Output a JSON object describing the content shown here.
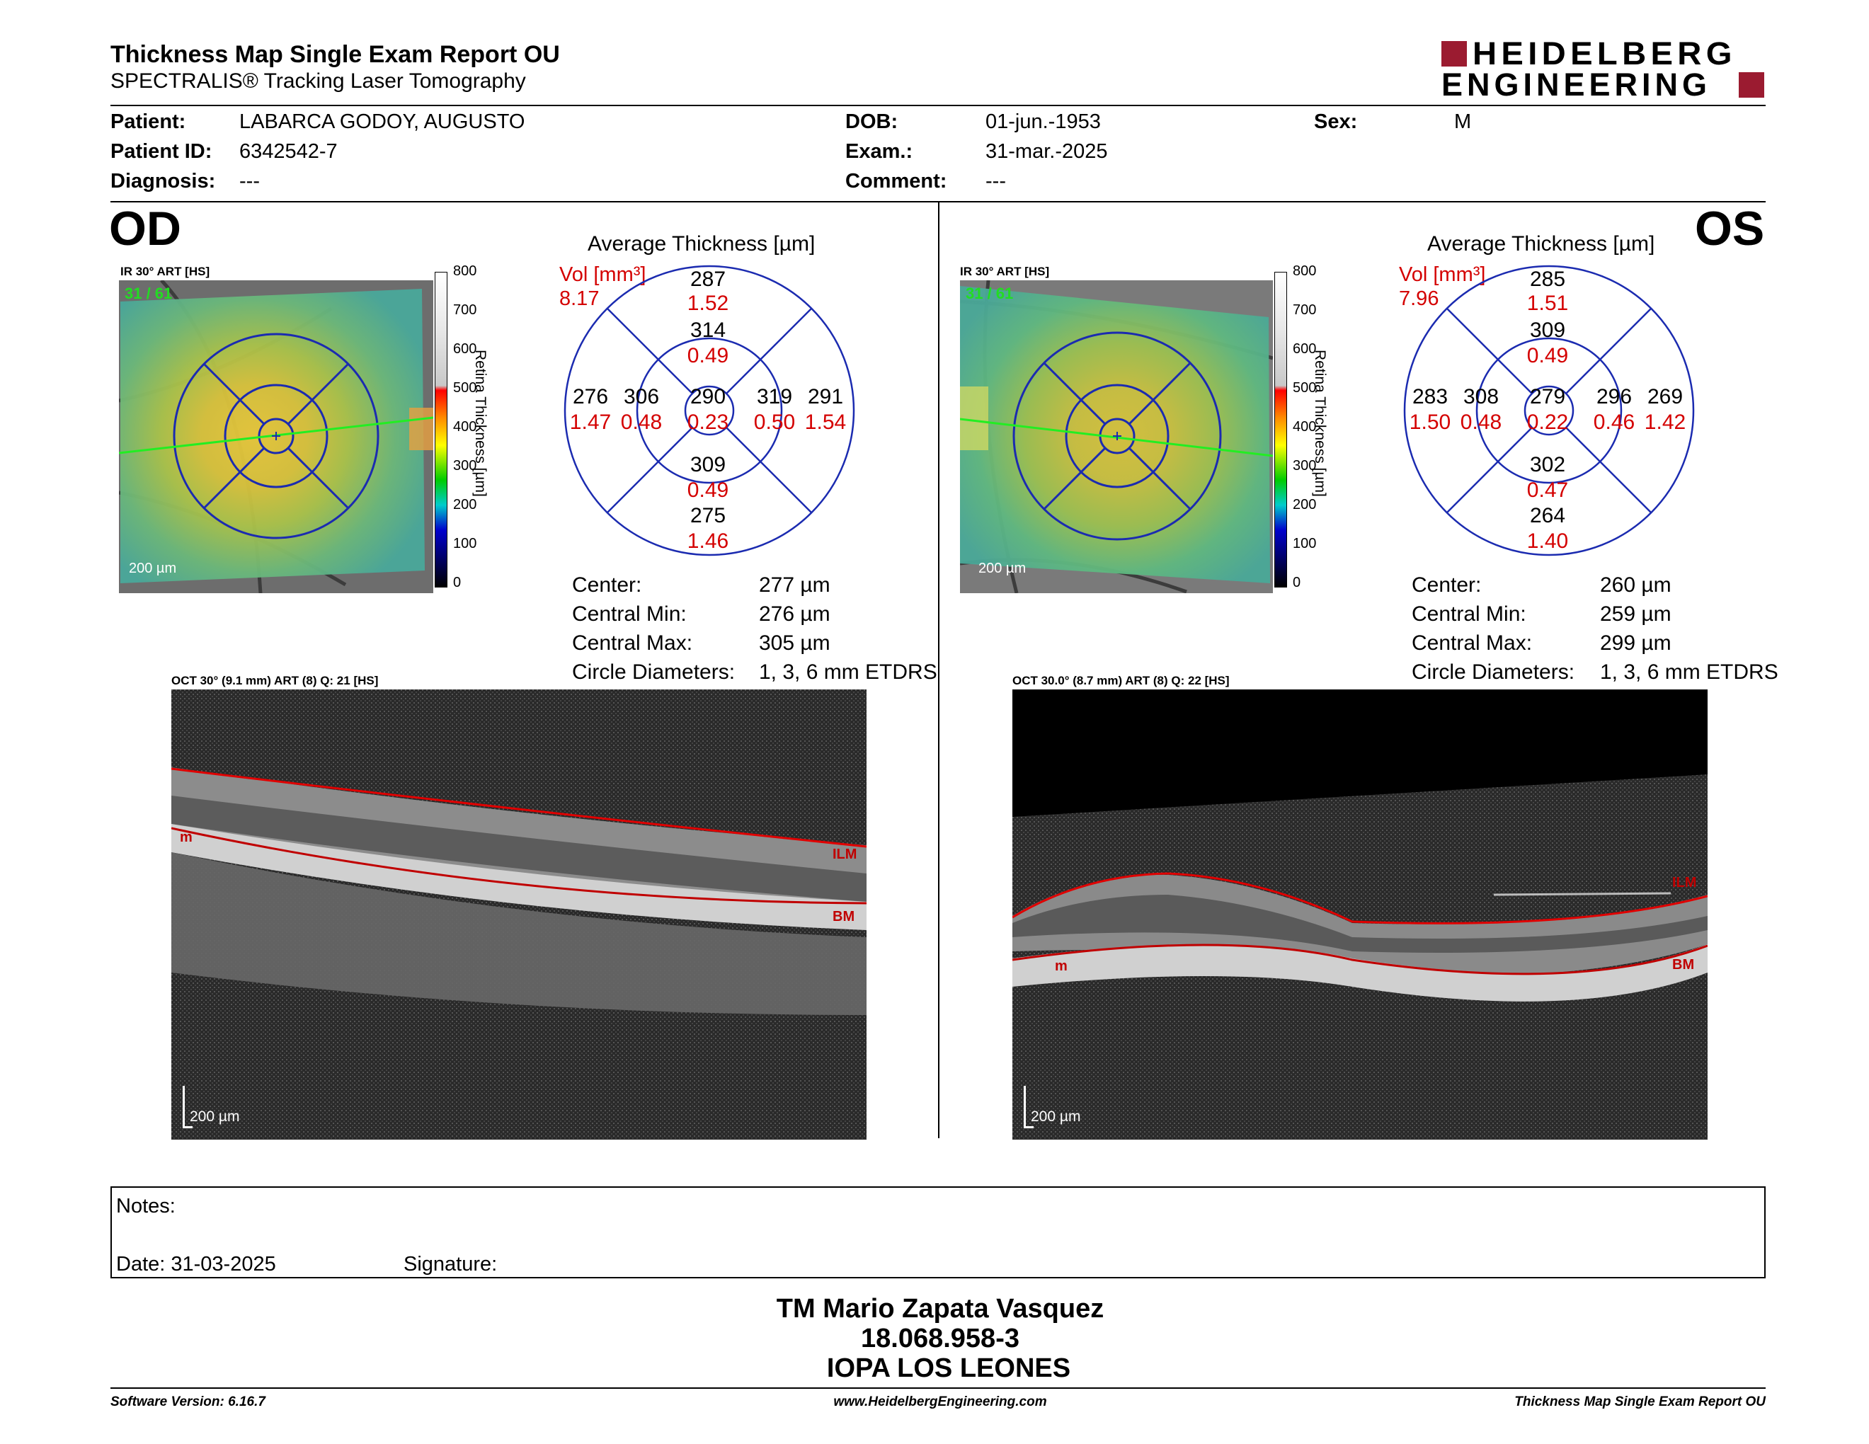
{
  "header": {
    "title": "Thickness Map Single Exam Report OU",
    "subtitle": "SPECTRALIS® Tracking Laser Tomography",
    "logo_line1": "HEIDELBERG",
    "logo_line2": "ENGINEERING"
  },
  "patient": {
    "patient_label": "Patient:",
    "patient_value": "LABARCA GODOY, AUGUSTO",
    "id_label": "Patient ID:",
    "id_value": "6342542-7",
    "diagnosis_label": "Diagnosis:",
    "diagnosis_value": "---",
    "dob_label": "DOB:",
    "dob_value": "01-jun.-1953",
    "exam_label": "Exam.:",
    "exam_value": "31-mar.-2025",
    "comment_label": "Comment:",
    "comment_value": "---",
    "sex_label": "Sex:",
    "sex_value": "M"
  },
  "colorbar": {
    "ticks": [
      "800",
      "700",
      "600",
      "500",
      "400",
      "300",
      "200",
      "100",
      "0"
    ],
    "label": "Retina Thickness [µm]"
  },
  "od": {
    "eye": "OD",
    "ir_title": "IR 30° ART [HS]",
    "ir_counter": "31 / 61",
    "scale": "200 µm",
    "avg_title": "Average Thickness [µm]",
    "vol_label": "Vol [mm³]",
    "vol_value": "8.17",
    "sectors": {
      "top_outer": "287",
      "top_outer_vol": "1.52",
      "top_inner": "314",
      "top_inner_vol": "0.49",
      "left_outer": "276",
      "left_outer_vol": "1.47",
      "left_inner": "306",
      "left_inner_vol": "0.48",
      "center": "290",
      "center_vol": "0.23",
      "right_inner": "319",
      "right_inner_vol": "0.50",
      "right_outer": "291",
      "right_outer_vol": "1.54",
      "bottom_inner": "309",
      "bottom_inner_vol": "0.49",
      "bottom_outer": "275",
      "bottom_outer_vol": "1.46"
    },
    "stats": {
      "center_label": "Center:",
      "center_value": "277 µm",
      "min_label": "Central Min:",
      "min_value": "276 µm",
      "max_label": "Central Max:",
      "max_value": "305 µm",
      "diam_label": "Circle Diameters:",
      "diam_value": "1, 3, 6 mm ETDRS"
    },
    "oct_title": "OCT 30° (9.1 mm) ART (8) Q: 21 [HS]",
    "oct_scale": "200 µm",
    "oct_ilm": "ILM",
    "oct_bm": "BM",
    "oct_m": "m"
  },
  "os": {
    "eye": "OS",
    "ir_title": "IR 30° ART [HS]",
    "ir_counter": "31 / 61",
    "scale": "200 µm",
    "avg_title": "Average Thickness [µm]",
    "vol_label": "Vol [mm³]",
    "vol_value": "7.96",
    "sectors": {
      "top_outer": "285",
      "top_outer_vol": "1.51",
      "top_inner": "309",
      "top_inner_vol": "0.49",
      "left_outer": "283",
      "left_outer_vol": "1.50",
      "left_inner": "308",
      "left_inner_vol": "0.48",
      "center": "279",
      "center_vol": "0.22",
      "right_inner": "296",
      "right_inner_vol": "0.46",
      "right_outer": "269",
      "right_outer_vol": "1.42",
      "bottom_inner": "302",
      "bottom_inner_vol": "0.47",
      "bottom_outer": "264",
      "bottom_outer_vol": "1.40"
    },
    "stats": {
      "center_label": "Center:",
      "center_value": "260 µm",
      "min_label": "Central Min:",
      "min_value": "259 µm",
      "max_label": "Central Max:",
      "max_value": "299 µm",
      "diam_label": "Circle Diameters:",
      "diam_value": "1, 3, 6 mm ETDRS"
    },
    "oct_title": "OCT 30.0° (8.7 mm) ART (8) Q: 22 [HS]",
    "oct_scale": "200 µm",
    "oct_ilm": "ILM",
    "oct_bm": "BM",
    "oct_m": "m"
  },
  "notes": {
    "notes_label": "Notes:",
    "date_label": "Date: 31-03-2025",
    "signature_label": "Signature:"
  },
  "signer": {
    "name": "TM Mario Zapata Vasquez",
    "rut": "18.068.958-3",
    "institution": "IOPA LOS LEONES"
  },
  "footer": {
    "software": "Software Version: 6.16.7",
    "website": "www.HeidelbergEngineering.com",
    "report": "Thickness Map Single Exam Report OU"
  }
}
